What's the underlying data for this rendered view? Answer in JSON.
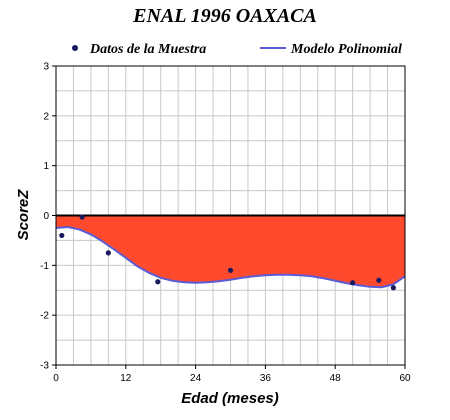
{
  "chart_data": {
    "type": "scatter",
    "title": "ENAL 1996 OAXACA",
    "xlabel": "Edad (meses)",
    "ylabel": "ScoreZ",
    "xlim": [
      0,
      60
    ],
    "ylim": [
      -3,
      3
    ],
    "x_ticks": [
      0,
      12,
      24,
      36,
      48,
      60
    ],
    "y_ticks": [
      -3,
      -2,
      -1,
      0,
      1,
      2,
      3
    ],
    "grid": true,
    "legend_position": "top",
    "series": [
      {
        "name": "Datos de la Muestra",
        "kind": "points",
        "color": "#1a1a5e",
        "x": [
          1,
          4.5,
          9,
          17.5,
          30,
          51,
          55.5,
          58
        ],
        "y": [
          -0.4,
          -0.03,
          -0.75,
          -1.33,
          -1.1,
          -1.35,
          -1.3,
          -1.45
        ]
      },
      {
        "name": "Modelo Polinomial",
        "kind": "line",
        "color": "#5b5bd6",
        "fill_to_zero": "#ff4a2e",
        "x": [
          0,
          2,
          4,
          6,
          8,
          10,
          12,
          14,
          16,
          18,
          20,
          22,
          24,
          26,
          28,
          30,
          32,
          34,
          36,
          38,
          40,
          42,
          44,
          46,
          48,
          50,
          52,
          54,
          56,
          58,
          60
        ],
        "y": [
          -0.25,
          -0.23,
          -0.28,
          -0.38,
          -0.52,
          -0.68,
          -0.85,
          -1.02,
          -1.15,
          -1.25,
          -1.31,
          -1.34,
          -1.35,
          -1.34,
          -1.32,
          -1.29,
          -1.25,
          -1.22,
          -1.2,
          -1.19,
          -1.19,
          -1.2,
          -1.22,
          -1.26,
          -1.31,
          -1.36,
          -1.4,
          -1.43,
          -1.44,
          -1.38,
          -1.22
        ]
      }
    ]
  }
}
